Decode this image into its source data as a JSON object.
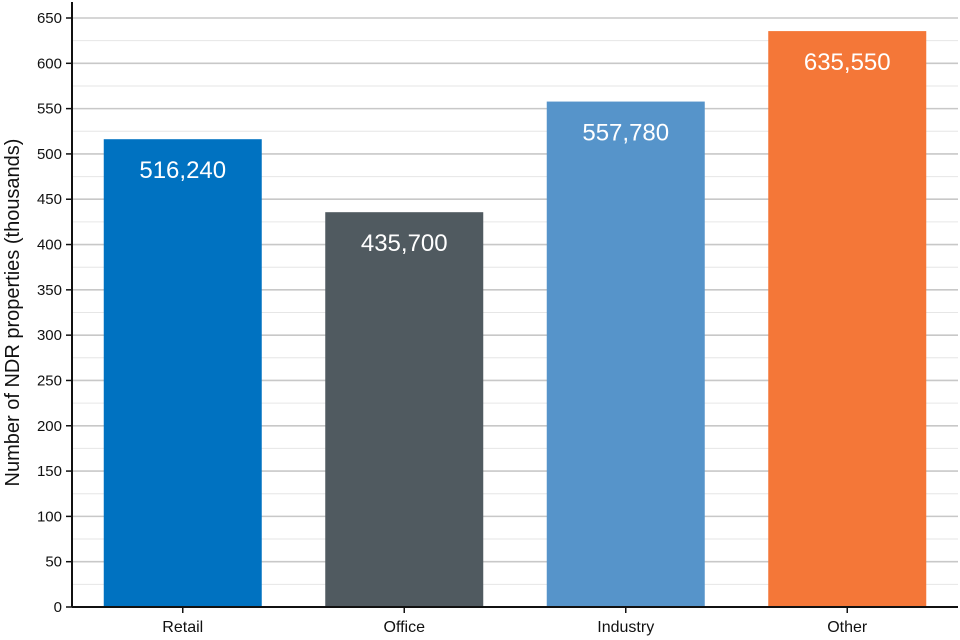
{
  "chart_data": {
    "type": "bar",
    "title": "",
    "xlabel": "",
    "ylabel": "Number of NDR properties (thousands)",
    "categories": [
      "Retail",
      "Office",
      "Industry",
      "Other"
    ],
    "values": [
      516.24,
      435.7,
      557.78,
      635.55
    ],
    "data_labels": [
      "516,240",
      "435,700",
      "557,780",
      "635,550"
    ],
    "colors": [
      "#0072c1",
      "#505a60",
      "#5694ca",
      "#f47738"
    ],
    "ylim": [
      0,
      650
    ],
    "yticks": [
      0,
      50,
      100,
      150,
      200,
      250,
      300,
      350,
      400,
      450,
      500,
      550,
      600,
      650
    ],
    "grid": true,
    "legend": "none"
  }
}
